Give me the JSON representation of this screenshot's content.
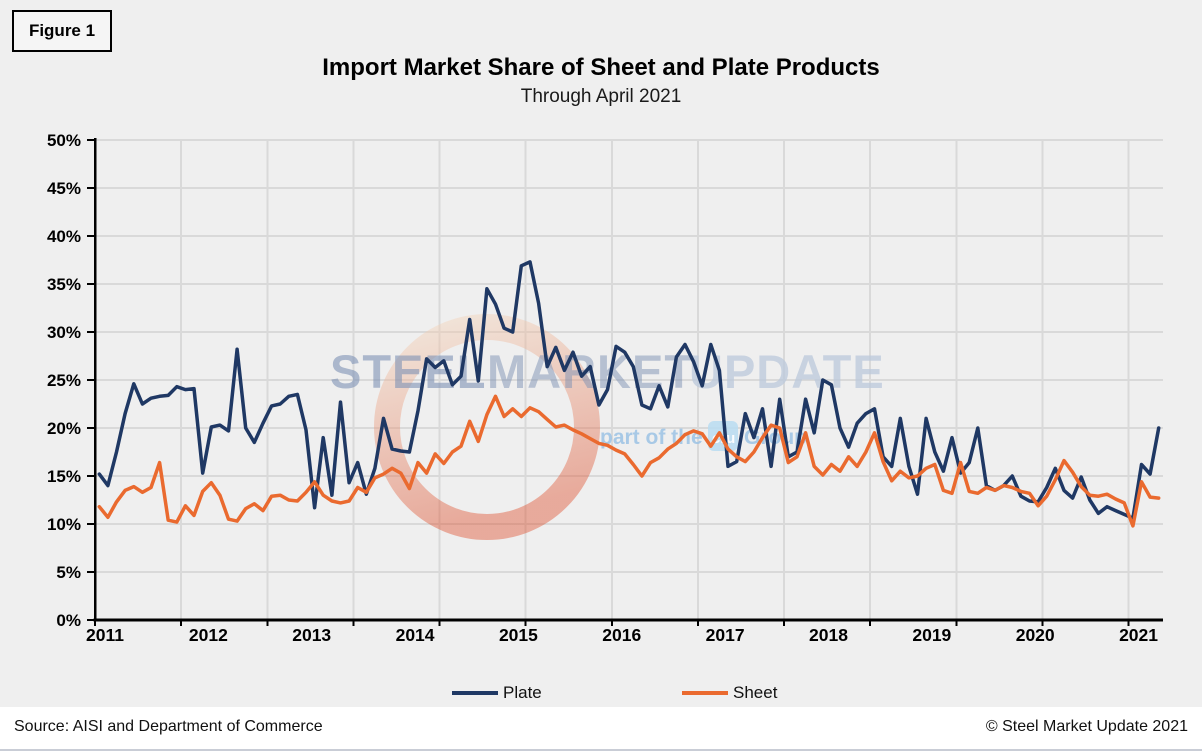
{
  "figure_label": "Figure 1",
  "title": "Import Market Share of Sheet and Plate Products",
  "subtitle": "Through April 2021",
  "watermark": {
    "word1": "STEEL",
    "word2": "MARKET",
    "word3": "UPDATE",
    "tagline_pre": "part of the",
    "tagline_logo": "cru",
    "tagline_post": "Group"
  },
  "legend": [
    {
      "label": "Plate",
      "color": "#1F3864"
    },
    {
      "label": "Sheet",
      "color": "#EA6A2F"
    }
  ],
  "footer": {
    "source": "Source: AISI and Department of Commerce",
    "copyright": "© Steel Market Update 2021"
  },
  "colors": {
    "background": "#EFEFEF",
    "gridline": "#D9D9D9",
    "axis": "#000000",
    "plate": "#1F3864",
    "sheet": "#EA6A2F",
    "watermark_text": "#7E92B5",
    "watermark_text_light": "#BCC9DC",
    "watermark_tagline": "#9CC3E5"
  },
  "chart_data": {
    "type": "line",
    "title": "Import Market Share of Sheet and Plate Products",
    "subtitle": "Through April 2021",
    "x_unit": "month",
    "start": "2011-01",
    "end": "2021-04",
    "x_tick_labels": [
      "2011",
      "2012",
      "2013",
      "2014",
      "2015",
      "2016",
      "2017",
      "2018",
      "2019",
      "2020",
      "2021"
    ],
    "y_tick_labels": [
      "0%",
      "5%",
      "10%",
      "15%",
      "20%",
      "25%",
      "30%",
      "35%",
      "40%",
      "45%",
      "50%"
    ],
    "ylim": [
      0,
      50
    ],
    "grid": true,
    "legend_position": "bottom",
    "series": [
      {
        "name": "Plate",
        "color": "#1F3864",
        "values": [
          15.2,
          14.0,
          17.5,
          21.5,
          24.6,
          22.5,
          23.1,
          23.3,
          23.4,
          24.3,
          24.0,
          24.1,
          15.3,
          20.1,
          20.3,
          19.7,
          28.2,
          20.0,
          18.5,
          20.5,
          22.3,
          22.5,
          23.3,
          23.5,
          19.8,
          11.7,
          19.0,
          13.0,
          22.7,
          14.3,
          16.4,
          13.1,
          15.8,
          21.0,
          17.8,
          17.6,
          17.5,
          21.8,
          27.2,
          26.3,
          27.0,
          24.5,
          25.4,
          31.3,
          24.9,
          34.5,
          32.9,
          30.4,
          30.0,
          36.9,
          37.3,
          33.0,
          26.4,
          28.4,
          26.0,
          27.9,
          25.4,
          26.4,
          22.4,
          24.0,
          28.5,
          27.9,
          26.4,
          22.4,
          22.0,
          24.4,
          22.2,
          27.4,
          28.7,
          26.9,
          24.4,
          28.7,
          26.0,
          16.0,
          16.5,
          21.5,
          19.0,
          22.0,
          16.0,
          23.0,
          17.0,
          17.5,
          23.0,
          19.5,
          25.0,
          24.5,
          20.0,
          18.0,
          20.5,
          21.5,
          22.0,
          17.0,
          16.0,
          21.0,
          16.0,
          13.1,
          21.0,
          17.5,
          15.5,
          19.0,
          15.3,
          16.4,
          20.0,
          14.0,
          13.5,
          14.0,
          15.0,
          12.9,
          12.4,
          12.3,
          13.8,
          15.8,
          13.5,
          12.7,
          14.9,
          12.5,
          11.1,
          11.8,
          11.4,
          11.0,
          10.6,
          16.2,
          15.2,
          20.0
        ]
      },
      {
        "name": "Sheet",
        "color": "#EA6A2F",
        "values": [
          11.8,
          10.7,
          12.3,
          13.5,
          13.9,
          13.3,
          13.8,
          16.4,
          10.4,
          10.2,
          11.9,
          10.9,
          13.4,
          14.3,
          13.0,
          10.5,
          10.3,
          11.6,
          12.1,
          11.4,
          12.9,
          13.0,
          12.5,
          12.4,
          13.3,
          14.4,
          13.0,
          12.4,
          12.2,
          12.4,
          13.8,
          13.3,
          14.8,
          15.2,
          15.8,
          15.3,
          13.7,
          16.4,
          15.3,
          17.3,
          16.3,
          17.5,
          18.1,
          20.7,
          18.6,
          21.4,
          23.3,
          21.2,
          22.0,
          21.2,
          22.1,
          21.7,
          20.9,
          20.1,
          20.3,
          19.8,
          19.4,
          18.9,
          18.4,
          18.2,
          17.7,
          17.3,
          16.2,
          15.0,
          16.4,
          16.9,
          17.8,
          18.4,
          19.3,
          19.7,
          19.4,
          18.1,
          19.5,
          17.8,
          17.0,
          16.5,
          17.5,
          19.0,
          20.3,
          20.0,
          16.4,
          17.0,
          19.5,
          16.0,
          15.1,
          16.2,
          15.5,
          17.0,
          16.0,
          17.5,
          19.5,
          16.5,
          14.5,
          15.5,
          14.8,
          15.0,
          15.8,
          16.2,
          13.5,
          13.2,
          16.4,
          13.4,
          13.2,
          13.8,
          13.5,
          14.0,
          13.8,
          13.4,
          13.2,
          11.9,
          12.9,
          14.6,
          16.6,
          15.4,
          13.9,
          13.0,
          12.9,
          13.1,
          12.6,
          12.2,
          9.8,
          14.4,
          12.8,
          12.7
        ]
      }
    ]
  }
}
